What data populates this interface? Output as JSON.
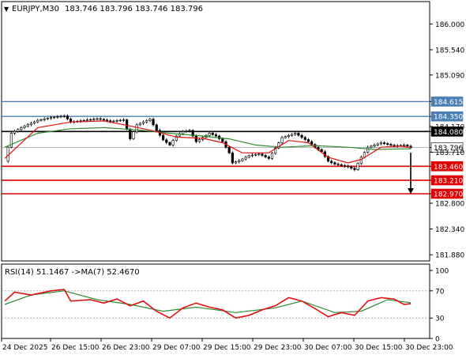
{
  "header": {
    "symbol_tf": "EURJPY,M30",
    "ohlc": "183.746 183.796 183.746 183.796"
  },
  "colors": {
    "blue_level": "#4a7fb5",
    "black_level": "#000000",
    "red_level": "#e00000",
    "current_price": "#9a9a9a",
    "candle": "#000000",
    "ma_fast": "#e01010",
    "ma_slow": "#2e8b2e",
    "rsi": "#e01010",
    "rsi_ma": "#2e8b2e"
  },
  "chart_data": [
    {
      "type": "candlestick",
      "title": "EURJPY,M30",
      "ylim": [
        181.77,
        186.4
      ],
      "y_ticks": [
        "186.000",
        "185.540",
        "185.090",
        "184.615",
        "184.350",
        "184.170",
        "184.080",
        "183.796",
        "183.710",
        "183.460",
        "183.210",
        "182.970",
        "182.800",
        "182.340",
        "181.880"
      ],
      "x_ticks": [
        "24 Dec 2025",
        "26 Dec 15:00",
        "26 Dec 23:00",
        "29 Dec 07:00",
        "29 Dec 15:00",
        "29 Dec 23:00",
        "30 Dec 07:00",
        "30 Dec 15:00",
        "30 Dec 23:00"
      ],
      "levels": [
        {
          "price": 184.615,
          "label": "184.615",
          "kind": "resistance"
        },
        {
          "price": 184.35,
          "label": "184.350",
          "kind": "resistance"
        },
        {
          "price": 184.08,
          "label": "184.080",
          "kind": "pivot"
        },
        {
          "price": 183.796,
          "label": "183.796",
          "kind": "current"
        },
        {
          "price": 183.46,
          "label": "183.460",
          "kind": "support"
        },
        {
          "price": 183.21,
          "label": "183.210",
          "kind": "support"
        },
        {
          "price": 182.97,
          "label": "182.970",
          "kind": "support"
        }
      ],
      "close_path": [
        [
          0,
          183.55
        ],
        [
          2,
          184.05
        ],
        [
          5,
          184.15
        ],
        [
          10,
          184.28
        ],
        [
          14,
          184.33
        ],
        [
          18,
          184.36
        ],
        [
          20,
          184.25
        ],
        [
          24,
          184.28
        ],
        [
          28,
          184.31
        ],
        [
          32,
          184.26
        ],
        [
          36,
          184.29
        ],
        [
          38,
          183.95
        ],
        [
          40,
          184.2
        ],
        [
          44,
          184.3
        ],
        [
          46,
          184.1
        ],
        [
          48,
          183.93
        ],
        [
          50,
          183.84
        ],
        [
          52,
          184.0
        ],
        [
          54,
          184.08
        ],
        [
          56,
          184.1
        ],
        [
          58,
          183.9
        ],
        [
          62,
          184.05
        ],
        [
          64,
          184.0
        ],
        [
          66,
          183.9
        ],
        [
          68,
          183.7
        ],
        [
          69,
          183.52
        ],
        [
          71,
          183.56
        ],
        [
          74,
          183.65
        ],
        [
          77,
          183.68
        ],
        [
          80,
          183.6
        ],
        [
          84,
          183.97
        ],
        [
          88,
          184.05
        ],
        [
          92,
          183.9
        ],
        [
          94,
          183.8
        ],
        [
          96,
          183.72
        ],
        [
          98,
          183.55
        ],
        [
          100,
          183.5
        ],
        [
          104,
          183.45
        ],
        [
          106,
          183.4
        ],
        [
          108,
          183.62
        ],
        [
          110,
          183.8
        ],
        [
          114,
          183.88
        ],
        [
          118,
          183.82
        ],
        [
          121,
          183.84
        ],
        [
          123,
          183.796
        ]
      ],
      "ma_fast_path": [
        [
          0,
          183.6
        ],
        [
          10,
          184.15
        ],
        [
          20,
          184.25
        ],
        [
          30,
          184.27
        ],
        [
          38,
          184.18
        ],
        [
          46,
          184.08
        ],
        [
          52,
          183.98
        ],
        [
          60,
          183.96
        ],
        [
          66,
          183.88
        ],
        [
          72,
          183.7
        ],
        [
          80,
          183.7
        ],
        [
          86,
          183.92
        ],
        [
          92,
          183.88
        ],
        [
          98,
          183.62
        ],
        [
          104,
          183.52
        ],
        [
          108,
          183.58
        ],
        [
          114,
          183.8
        ],
        [
          120,
          183.82
        ],
        [
          123,
          183.79
        ]
      ],
      "ma_slow_path": [
        [
          0,
          183.8
        ],
        [
          10,
          184.05
        ],
        [
          20,
          184.13
        ],
        [
          30,
          184.15
        ],
        [
          40,
          184.11
        ],
        [
          50,
          184.05
        ],
        [
          60,
          184.0
        ],
        [
          68,
          183.95
        ],
        [
          76,
          183.84
        ],
        [
          84,
          183.8
        ],
        [
          94,
          183.83
        ],
        [
          104,
          183.8
        ],
        [
          112,
          183.76
        ],
        [
          120,
          183.77
        ],
        [
          123,
          183.77
        ]
      ],
      "arrow": {
        "from": [
          123,
          183.7
        ],
        "to": [
          123,
          182.97
        ]
      }
    },
    {
      "type": "line",
      "title": "RSI(14) 51.1467 ->MA(7) 52.4670",
      "ylim": [
        0,
        100
      ],
      "y_ticks": [
        "100",
        "70",
        "30",
        "0"
      ],
      "levels": [
        70,
        30
      ],
      "series": [
        {
          "name": "RSI(14)",
          "values": [
            [
              0,
              55
            ],
            [
              3,
              68
            ],
            [
              8,
              64
            ],
            [
              14,
              70
            ],
            [
              18,
              72
            ],
            [
              20,
              55
            ],
            [
              26,
              57
            ],
            [
              30,
              52
            ],
            [
              34,
              58
            ],
            [
              38,
              48
            ],
            [
              42,
              55
            ],
            [
              46,
              40
            ],
            [
              50,
              30
            ],
            [
              54,
              45
            ],
            [
              58,
              52
            ],
            [
              62,
              46
            ],
            [
              66,
              42
            ],
            [
              70,
              30
            ],
            [
              74,
              34
            ],
            [
              78,
              42
            ],
            [
              82,
              48
            ],
            [
              86,
              60
            ],
            [
              90,
              55
            ],
            [
              94,
              44
            ],
            [
              98,
              32
            ],
            [
              102,
              38
            ],
            [
              106,
              34
            ],
            [
              110,
              55
            ],
            [
              114,
              60
            ],
            [
              118,
              58
            ],
            [
              121,
              50
            ],
            [
              123,
              51.15
            ]
          ]
        },
        {
          "name": "MA(7)",
          "values": [
            [
              0,
              50
            ],
            [
              8,
              64
            ],
            [
              18,
              70
            ],
            [
              28,
              57
            ],
            [
              38,
              50
            ],
            [
              48,
              40
            ],
            [
              58,
              46
            ],
            [
              70,
              38
            ],
            [
              82,
              45
            ],
            [
              90,
              55
            ],
            [
              100,
              38
            ],
            [
              108,
              40
            ],
            [
              116,
              57
            ],
            [
              123,
              52.47
            ]
          ]
        }
      ]
    }
  ]
}
